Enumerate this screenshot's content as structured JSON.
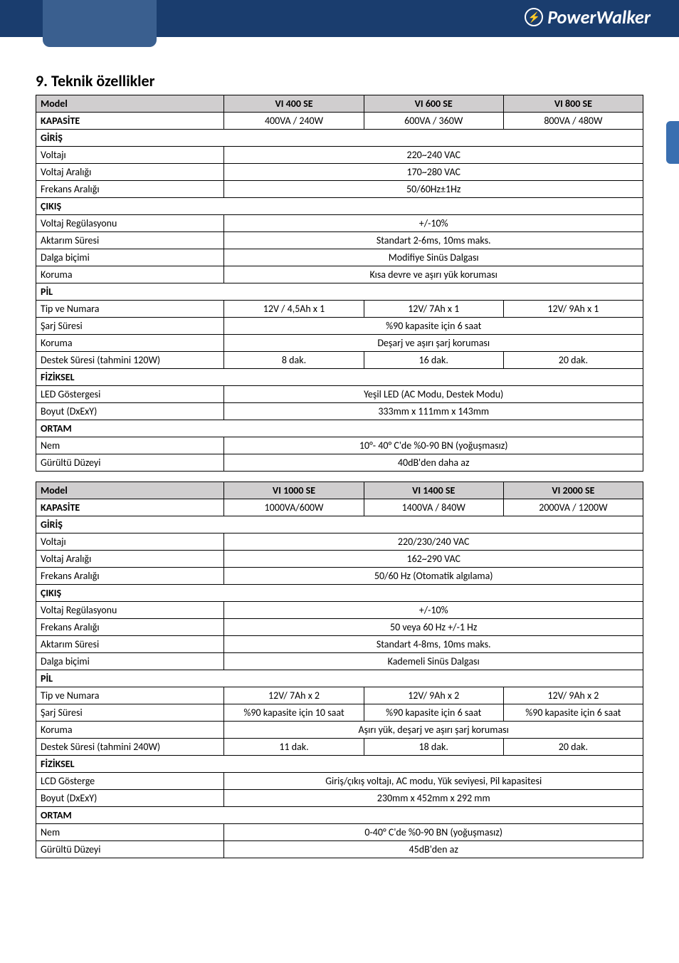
{
  "logoText": "PowerWalker",
  "heading": "9. Teknik özellikler",
  "table1": {
    "cols": [
      "Model",
      "VI 400 SE",
      "VI 600 SE",
      "VI 800 SE"
    ],
    "rows": [
      {
        "t": "row",
        "l": "KAPASİTE",
        "v": [
          "400VA / 240W",
          "600VA / 360W",
          "800VA / 480W"
        ],
        "lb": true
      },
      {
        "t": "sect",
        "l": "GİRİŞ"
      },
      {
        "t": "span",
        "l": "Voltajı",
        "v": "220~240 VAC"
      },
      {
        "t": "span",
        "l": "Voltaj Aralığı",
        "v": "170~280 VAC"
      },
      {
        "t": "span",
        "l": "Frekans Aralığı",
        "v": "50/60Hz±1Hz"
      },
      {
        "t": "sect",
        "l": "ÇIKIŞ"
      },
      {
        "t": "span",
        "l": "Voltaj Regülasyonu",
        "v": "+/-10%"
      },
      {
        "t": "span",
        "l": "Aktarım Süresi",
        "v": "Standart 2-6ms, 10ms maks."
      },
      {
        "t": "span",
        "l": "Dalga biçimi",
        "v": "Modifiye Sinüs Dalgası"
      },
      {
        "t": "span",
        "l": "Koruma",
        "v": "Kısa devre ve aşırı yük koruması"
      },
      {
        "t": "sect",
        "l": "PİL"
      },
      {
        "t": "row",
        "l": "Tip ve Numara",
        "v": [
          "12V / 4,5Ah x 1",
          "12V/ 7Ah x 1",
          "12V/ 9Ah x 1"
        ]
      },
      {
        "t": "span",
        "l": "Şarj Süresi",
        "v": "%90 kapasite için 6 saat"
      },
      {
        "t": "span",
        "l": "Koruma",
        "v": "Deşarj ve aşırı şarj koruması"
      },
      {
        "t": "row",
        "l": "Destek Süresi (tahmini 120W)",
        "v": [
          "8 dak.",
          "16 dak.",
          "20 dak."
        ]
      },
      {
        "t": "sect",
        "l": "FİZİKSEL"
      },
      {
        "t": "span",
        "l": "LED Göstergesi",
        "v": "Yeşil LED (AC Modu, Destek Modu)"
      },
      {
        "t": "span",
        "l": "Boyut (DxExY)",
        "v": "333mm x 111mm x 143mm"
      },
      {
        "t": "sect",
        "l": "ORTAM"
      },
      {
        "t": "span",
        "l": "Nem",
        "v": "10°- 40° C'de %0-90 BN (yoğuşmasız)"
      },
      {
        "t": "span",
        "l": "Gürültü Düzeyi",
        "v": "40dB'den daha az"
      }
    ]
  },
  "table2": {
    "cols": [
      "Model",
      "VI 1000 SE",
      "VI 1400 SE",
      "VI 2000 SE"
    ],
    "rows": [
      {
        "t": "row",
        "l": "KAPASİTE",
        "v": [
          "1000VA/600W",
          "1400VA / 840W",
          "2000VA / 1200W"
        ],
        "lb": true
      },
      {
        "t": "sect",
        "l": "GİRİŞ"
      },
      {
        "t": "span",
        "l": "Voltajı",
        "v": "220/230/240 VAC"
      },
      {
        "t": "span",
        "l": "Voltaj Aralığı",
        "v": "162~290 VAC"
      },
      {
        "t": "span",
        "l": "Frekans Aralığı",
        "v": "50/60 Hz (Otomatik algılama)"
      },
      {
        "t": "sect",
        "l": "ÇIKIŞ"
      },
      {
        "t": "span",
        "l": "Voltaj Regülasyonu",
        "v": "+/-10%"
      },
      {
        "t": "span",
        "l": "Frekans Aralığı",
        "v": "50 veya 60 Hz +/-1 Hz"
      },
      {
        "t": "span",
        "l": "Aktarım Süresi",
        "v": "Standart 4-8ms, 10ms maks."
      },
      {
        "t": "span",
        "l": "Dalga biçimi",
        "v": "Kademeli Sinüs Dalgası"
      },
      {
        "t": "sect",
        "l": "PİL"
      },
      {
        "t": "row",
        "l": "Tip ve Numara",
        "v": [
          "12V/ 7Ah x 2",
          "12V/ 9Ah x 2",
          "12V/ 9Ah x 2"
        ]
      },
      {
        "t": "row",
        "l": "Şarj Süresi",
        "v": [
          "%90 kapasite için 10 saat",
          "%90 kapasite için 6 saat",
          "%90 kapasite için 6 saat"
        ]
      },
      {
        "t": "span",
        "l": "Koruma",
        "v": "Aşırı yük, deşarj ve aşırı şarj koruması"
      },
      {
        "t": "row",
        "l": "Destek Süresi (tahmini 240W)",
        "v": [
          "11 dak.",
          "18 dak.",
          "20 dak."
        ]
      },
      {
        "t": "sect",
        "l": "FİZİKSEL"
      },
      {
        "t": "span",
        "l": "LCD Gösterge",
        "v": "Giriş/çıkış voltajı, AC modu, Yük seviyesi, Pil kapasitesi"
      },
      {
        "t": "span",
        "l": "Boyut (DxExY)",
        "v": "230mm x 452mm x 292 mm"
      },
      {
        "t": "sect",
        "l": "ORTAM"
      },
      {
        "t": "span",
        "l": "Nem",
        "v": "0-40° C'de %0-90 BN (yoğuşmasız)"
      },
      {
        "t": "span",
        "l": "Gürültü Düzeyi",
        "v": "45dB'den az"
      }
    ]
  }
}
